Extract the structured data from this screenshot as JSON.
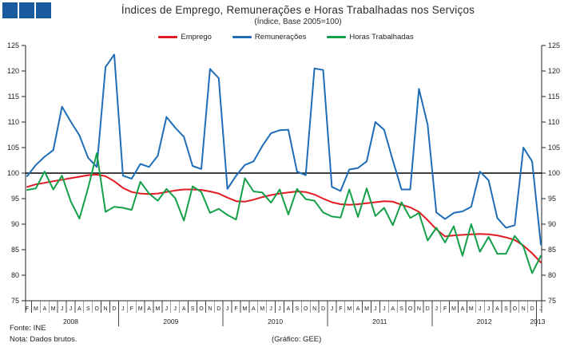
{
  "header": {
    "title": "Índices de Emprego, Remunerações e Horas Trabalhadas nos Serviços",
    "subtitle": "(Índice, Base 2005=100)"
  },
  "legend": {
    "items": [
      {
        "label": "Emprego",
        "color": "#e11b22"
      },
      {
        "label": "Remunerações",
        "color": "#1e6db6"
      },
      {
        "label": "Horas Trabalhadas",
        "color": "#13a049"
      }
    ]
  },
  "footer": {
    "fonte": "Fonte: INE",
    "nota": "Nota: Dados brutos.",
    "grafico": "(Gráfico: GEE)"
  },
  "brand": {
    "square_color": "#185a9d"
  },
  "chart_data": {
    "type": "line",
    "title": "Índices de Emprego, Remunerações e Horas Trabalhadas nos Serviços",
    "subtitle": "(Índice, Base 2005=100)",
    "xlabel": "",
    "ylabel": "",
    "ylim": [
      75,
      125
    ],
    "ytick_step": 5,
    "grid": false,
    "ref_line": 100,
    "legend_position": "top",
    "axis_color": "#222222",
    "ref_line_color": "#000000",
    "month_labels": [
      "F",
      "M",
      "A",
      "M",
      "J",
      "J",
      "A",
      "S",
      "O",
      "N",
      "D",
      "J",
      "F",
      "M",
      "A",
      "M",
      "J",
      "J",
      "A",
      "S",
      "O",
      "N",
      "D",
      "J",
      "F",
      "M",
      "A",
      "M",
      "J",
      "J",
      "A",
      "S",
      "O",
      "N",
      "D",
      "J",
      "F",
      "M",
      "A",
      "M",
      "J",
      "J",
      "A",
      "S",
      "O",
      "N",
      "D",
      "J",
      "F",
      "M",
      "A",
      "M",
      "J",
      "J",
      "A",
      "S",
      "O",
      "N",
      "D",
      "J"
    ],
    "year_groups": [
      {
        "label": "2008",
        "count": 11
      },
      {
        "label": "2009",
        "count": 12
      },
      {
        "label": "2010",
        "count": 12
      },
      {
        "label": "2011",
        "count": 12
      },
      {
        "label": "2012",
        "count": 12
      },
      {
        "label": "2013",
        "count": 1
      }
    ],
    "series": [
      {
        "name": "Emprego",
        "color": "#e11b22",
        "values": [
          97.3,
          97.8,
          98.1,
          98.4,
          98.7,
          99.0,
          99.3,
          99.6,
          99.7,
          99.4,
          98.4,
          97.1,
          96.3,
          96.0,
          95.9,
          96.0,
          96.3,
          96.6,
          96.8,
          96.8,
          96.7,
          96.4,
          96.0,
          95.2,
          94.5,
          94.4,
          94.8,
          95.3,
          95.7,
          96.0,
          96.2,
          96.4,
          96.3,
          95.8,
          95.0,
          94.3,
          93.9,
          93.8,
          93.9,
          94.1,
          94.3,
          94.5,
          94.4,
          93.8,
          93.3,
          92.4,
          90.8,
          89.0,
          87.6,
          87.8,
          87.9,
          88.0,
          88.1,
          88.0,
          87.8,
          87.4,
          86.9,
          85.8,
          84.3,
          82.5
        ]
      },
      {
        "name": "Remunerações",
        "color": "#1e6db6",
        "values": [
          99.4,
          101.6,
          103.2,
          104.5,
          113.0,
          110.1,
          107.4,
          103.0,
          101.2,
          120.8,
          123.2,
          99.5,
          98.9,
          101.8,
          101.2,
          103.4,
          111.0,
          108.9,
          107.1,
          101.4,
          100.8,
          120.4,
          118.6,
          96.9,
          99.5,
          101.6,
          102.3,
          105.3,
          107.8,
          108.4,
          108.5,
          100.3,
          99.6,
          120.5,
          120.2,
          97.3,
          96.5,
          100.7,
          101.0,
          102.3,
          110.0,
          108.5,
          102.5,
          96.8,
          96.8,
          116.5,
          109.5,
          92.3,
          91.0,
          92.2,
          92.5,
          93.4,
          100.3,
          98.6,
          91.2,
          89.3,
          89.8,
          105.0,
          102.3,
          86.0
        ]
      },
      {
        "name": "Horas Trabalhadas",
        "color": "#13a049",
        "values": [
          96.7,
          97.0,
          100.3,
          96.8,
          99.5,
          94.5,
          91.1,
          97.1,
          103.9,
          92.4,
          93.4,
          93.2,
          92.8,
          98.3,
          96.0,
          94.6,
          96.9,
          95.1,
          90.7,
          97.4,
          96.3,
          92.2,
          93.0,
          91.8,
          90.9,
          99.0,
          96.4,
          96.2,
          94.2,
          96.8,
          91.9,
          96.9,
          94.9,
          94.6,
          92.3,
          91.5,
          91.3,
          96.8,
          91.4,
          97.0,
          91.6,
          93.2,
          89.8,
          94.3,
          91.2,
          92.2,
          86.8,
          89.3,
          86.4,
          89.6,
          83.8,
          90.0,
          84.6,
          87.5,
          84.2,
          84.2,
          87.7,
          85.6,
          80.4,
          83.8
        ]
      }
    ]
  }
}
